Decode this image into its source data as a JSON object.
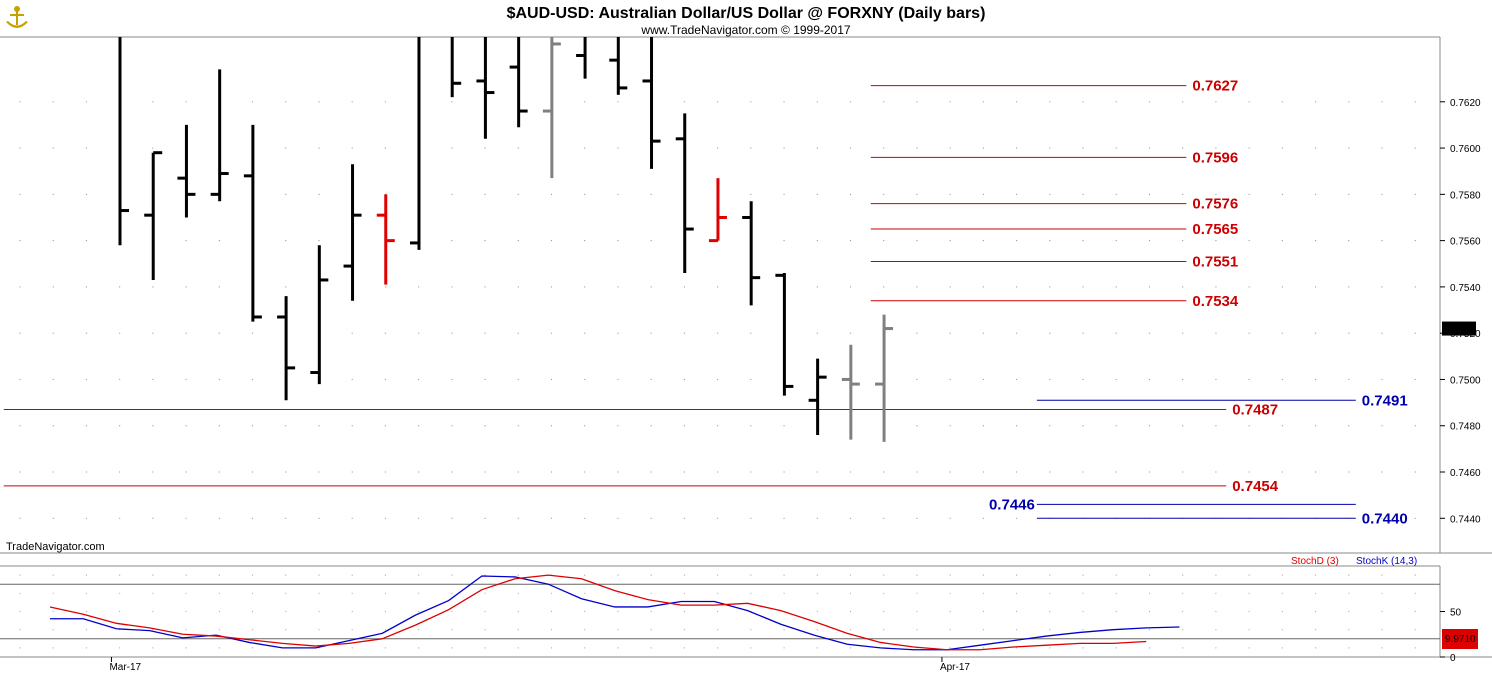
{
  "header": {
    "title": "$AUD-USD:  Australian Dollar/US Dollar @ FORXNY  (Daily bars)",
    "copyright": "www.TradeNavigator.com © 1999-2017",
    "logo_icon": "anchor-logo-icon",
    "watermark": "TradeNavigator.com"
  },
  "colors": {
    "up_bar": "#000000",
    "highlight_bar": "#e00000",
    "gray_bar": "#808080",
    "support_line": "#cc0000",
    "target_line": "#0000aa",
    "stochD": "#dd0000",
    "stochK": "#0000cc",
    "last_price_badge": "#000000",
    "stoch_badge": "#dd0000"
  },
  "chart_data": [
    {
      "type": "ohlc",
      "title": "$AUD-USD:  Australian Dollar/US Dollar @ FORXNY  (Daily bars)",
      "ylim": [
        0.7425,
        0.7648
      ],
      "y_ticks": [
        "0.7440",
        "0.7460",
        "0.7480",
        "0.7500",
        "0.7520",
        "0.7540",
        "0.7560",
        "0.7580",
        "0.7600",
        "0.7620"
      ],
      "x_labels": [
        {
          "label": "Mar-17",
          "at_bar": 2
        },
        {
          "label": "Apr-17",
          "at_bar": 27
        }
      ],
      "last_price": "0.7522",
      "bars": [
        {
          "h": 0.7648,
          "l": 0.7558,
          "o": null,
          "c": 0.7573,
          "color": "black"
        },
        {
          "h": 0.7598,
          "l": 0.7543,
          "o": 0.7571,
          "c": 0.7598,
          "color": "black"
        },
        {
          "h": 0.761,
          "l": 0.757,
          "o": 0.7587,
          "c": 0.758,
          "color": "black"
        },
        {
          "h": 0.7634,
          "l": 0.7577,
          "o": 0.758,
          "c": 0.7589,
          "color": "black"
        },
        {
          "h": 0.761,
          "l": 0.7525,
          "o": 0.7588,
          "c": 0.7527,
          "color": "black"
        },
        {
          "h": 0.7536,
          "l": 0.7491,
          "o": 0.7527,
          "c": 0.7505,
          "color": "black"
        },
        {
          "h": 0.7558,
          "l": 0.7498,
          "o": 0.7503,
          "c": 0.7543,
          "color": "black"
        },
        {
          "h": 0.7593,
          "l": 0.7534,
          "o": 0.7549,
          "c": 0.7571,
          "color": "black"
        },
        {
          "h": 0.758,
          "l": 0.7541,
          "o": 0.7571,
          "c": 0.756,
          "color": "red"
        },
        {
          "h": 0.7648,
          "l": 0.7556,
          "o": 0.7559,
          "c": null,
          "color": "black"
        },
        {
          "h": 0.7648,
          "l": 0.7622,
          "o": null,
          "c": 0.7628,
          "color": "black"
        },
        {
          "h": 0.7648,
          "l": 0.7604,
          "o": 0.7629,
          "c": 0.7624,
          "color": "black"
        },
        {
          "h": 0.7648,
          "l": 0.7609,
          "o": 0.7635,
          "c": 0.7616,
          "color": "black"
        },
        {
          "h": 0.7648,
          "l": 0.7587,
          "o": 0.7616,
          "c": 0.7645,
          "color": "gray"
        },
        {
          "h": 0.7648,
          "l": 0.763,
          "o": 0.764,
          "c": null,
          "color": "black"
        },
        {
          "h": 0.7648,
          "l": 0.7623,
          "o": 0.7638,
          "c": 0.7626,
          "color": "black"
        },
        {
          "h": 0.7648,
          "l": 0.7591,
          "o": 0.7629,
          "c": 0.7603,
          "color": "black"
        },
        {
          "h": 0.7615,
          "l": 0.7546,
          "o": 0.7604,
          "c": 0.7565,
          "color": "black"
        },
        {
          "h": 0.7587,
          "l": 0.756,
          "o": 0.756,
          "c": 0.757,
          "color": "red"
        },
        {
          "h": 0.7577,
          "l": 0.7532,
          "o": 0.757,
          "c": 0.7544,
          "color": "black"
        },
        {
          "h": 0.7546,
          "l": 0.7493,
          "o": 0.7545,
          "c": 0.7497,
          "color": "black"
        },
        {
          "h": 0.7509,
          "l": 0.7476,
          "o": 0.7491,
          "c": 0.7501,
          "color": "black"
        },
        {
          "h": 0.7515,
          "l": 0.7474,
          "o": 0.75,
          "c": 0.7498,
          "color": "gray"
        },
        {
          "h": 0.7528,
          "l": 0.7473,
          "o": 0.7498,
          "c": 0.7522,
          "color": "gray"
        }
      ],
      "levels": [
        {
          "value": 0.7627,
          "label": "0.7627",
          "color": "red",
          "from_bar": 22.6,
          "to_bar": 32.1,
          "label_side": "right"
        },
        {
          "value": 0.7596,
          "label": "0.7596",
          "color": "red",
          "from_bar": 22.6,
          "to_bar": 32.1,
          "label_side": "right"
        },
        {
          "value": 0.7576,
          "label": "0.7576",
          "color": "red",
          "from_bar": 22.6,
          "to_bar": 32.1,
          "label_side": "right"
        },
        {
          "value": 0.7565,
          "label": "0.7565",
          "color": "red",
          "from_bar": 22.6,
          "to_bar": 32.1,
          "label_side": "right"
        },
        {
          "value": 0.7551,
          "label": "0.7551",
          "color": "red",
          "from_bar": 22.6,
          "to_bar": 32.1,
          "label_side": "right"
        },
        {
          "value": 0.7534,
          "label": "0.7534",
          "color": "red",
          "from_bar": 22.6,
          "to_bar": 32.1,
          "label_side": "right"
        },
        {
          "value": 0.7487,
          "label": "0.7487",
          "color": "red",
          "from_bar": -3.5,
          "to_bar": 33.3,
          "label_side": "right"
        },
        {
          "value": 0.7454,
          "label": "0.7454",
          "color": "red",
          "from_bar": -3.5,
          "to_bar": 33.3,
          "label_side": "right"
        },
        {
          "value": 0.7491,
          "label": "0.7491",
          "color": "blue",
          "from_bar": 27.6,
          "to_bar": 37.2,
          "label_side": "right"
        },
        {
          "value": 0.7446,
          "label": "0.7446",
          "color": "blue",
          "from_bar": 27.6,
          "to_bar": 37.2,
          "label_side": "left"
        },
        {
          "value": 0.744,
          "label": "0.7440",
          "color": "blue",
          "from_bar": 27.6,
          "to_bar": 37.2,
          "label_side": "right"
        }
      ]
    },
    {
      "type": "line",
      "title": "",
      "ylim": [
        0,
        100
      ],
      "y_ticks": [
        "50",
        "0"
      ],
      "hlines": [
        20,
        80
      ],
      "legend": [
        {
          "label": "StochD (3)",
          "color": "red"
        },
        {
          "label": "StochK (14,3)",
          "color": "blue"
        }
      ],
      "badge_text": "9.9710",
      "series": [
        {
          "name": "StochK (14,3)",
          "color": "blue",
          "x": [
            0,
            1,
            2,
            3,
            4,
            5,
            6,
            7,
            8,
            9,
            10,
            11,
            12,
            13,
            14,
            15,
            16,
            17,
            18,
            19,
            20,
            21,
            22,
            23
          ],
          "values": [
            42,
            42,
            31,
            29,
            21,
            24,
            16,
            10,
            10,
            18,
            26,
            46,
            62,
            89,
            88,
            80,
            64,
            55,
            55,
            61,
            61,
            51,
            36,
            24
          ]
        },
        {
          "name": "StochD (3)",
          "color": "red",
          "x": [
            0,
            1,
            2,
            3,
            4,
            5,
            6,
            7,
            8,
            9,
            10,
            11,
            12,
            13,
            14,
            15,
            16,
            17,
            18,
            19,
            20,
            21,
            22,
            23,
            24,
            25,
            26,
            27,
            28,
            29,
            30,
            31,
            32,
            33
          ],
          "values": [
            55,
            47,
            37,
            32,
            25,
            23,
            19,
            15,
            12,
            15,
            20,
            35,
            52,
            74,
            86,
            90,
            86,
            73,
            63,
            57,
            57,
            59,
            51,
            39,
            26,
            16,
            11,
            8,
            8,
            11,
            13,
            15,
            15,
            17
          ]
        }
      ],
      "extra_k": [
        14,
        10,
        8,
        8,
        13,
        18,
        23,
        27,
        30,
        32,
        33
      ]
    }
  ]
}
